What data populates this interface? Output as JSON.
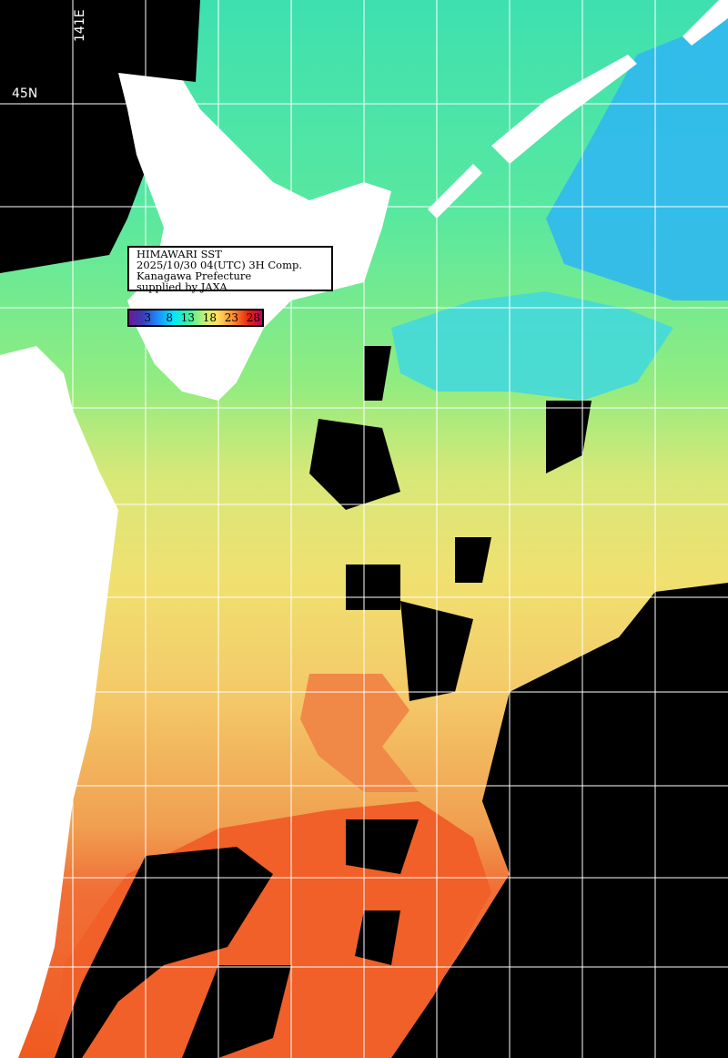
{
  "info": {
    "line1": "HIMAWARI SST",
    "line2": "2025/10/30 04(UTC) 3H Comp.",
    "line3": "Kanagawa Prefecture",
    "line4": "supplied by JAXA"
  },
  "colorbar": {
    "ticks": [
      "3",
      "8",
      "13",
      "18",
      "23",
      "28"
    ],
    "unit_range_colors": [
      "#6a1b9a",
      "#1e90ff",
      "#00e5ff",
      "#40f0a0",
      "#ffe060",
      "#ff9030",
      "#e82010",
      "#c00060"
    ]
  },
  "grid": {
    "lat_label": "45N",
    "lon_label": "141E"
  },
  "colors": {
    "land": "#ffffff",
    "no_data": "#000000",
    "grid": "#ffffff"
  }
}
